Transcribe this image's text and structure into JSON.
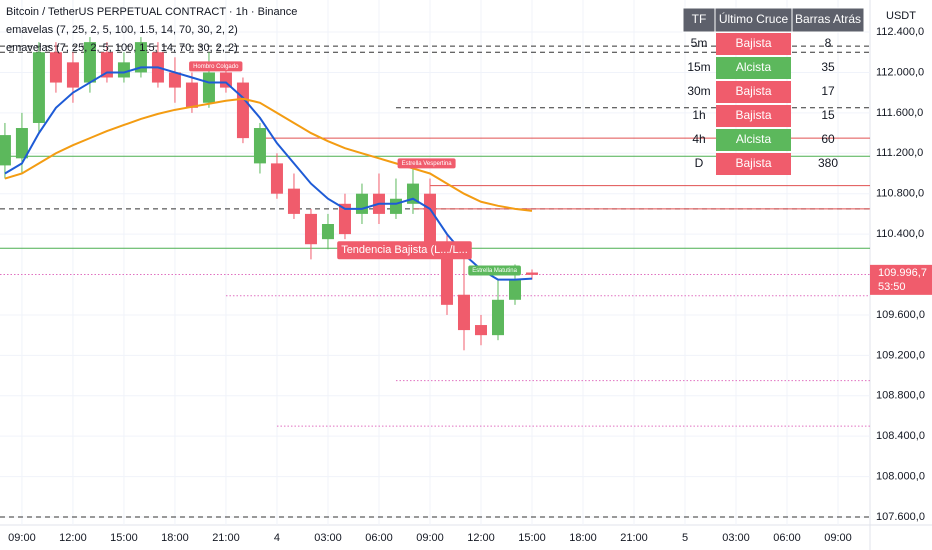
{
  "chart_data": {
    "type": "candlestick",
    "title": "Bitcoin / TetherUS PERPETUAL CONTRACT · 1h · Binance",
    "indicators": [
      "emavelas (7, 25, 2, 5, 100, 1.5, 14, 70, 30, 2, 2)",
      "emavelas (7, 25, 2, 5, 100, 1.5, 14, 70, 30, 2, 2)"
    ],
    "currency": "USDT",
    "x": [
      -1,
      0,
      1,
      2,
      3,
      4,
      5,
      6,
      7,
      8,
      9,
      10,
      11,
      12,
      13,
      14,
      15,
      16,
      17,
      18,
      19,
      20,
      21,
      22,
      23,
      24,
      25,
      26,
      27,
      28,
      29,
      30
    ],
    "open": [
      111080,
      111150,
      111500,
      112200,
      112100,
      111900,
      112200,
      111950,
      112000,
      112200,
      112000,
      111900,
      111700,
      112000,
      111900,
      111100,
      111100,
      110850,
      110600,
      110350,
      110700,
      110600,
      110800,
      110600,
      110700,
      110800,
      110300,
      109800,
      109500,
      109400,
      109750,
      110020
    ],
    "close": [
      111380,
      111450,
      112200,
      111900,
      111850,
      112300,
      111950,
      112100,
      112300,
      111900,
      111850,
      111650,
      112000,
      111850,
      111350,
      111450,
      110800,
      110600,
      110300,
      110500,
      110400,
      110800,
      110600,
      110750,
      110900,
      110300,
      109700,
      109450,
      109400,
      109750,
      109950,
      109996.7
    ],
    "high": [
      111500,
      111600,
      112300,
      112300,
      112200,
      112350,
      112300,
      112200,
      112350,
      112300,
      112150,
      112000,
      112200,
      112100,
      111950,
      111500,
      111200,
      111000,
      110650,
      110600,
      110800,
      110900,
      111000,
      110950,
      111050,
      110950,
      110400,
      110200,
      109600,
      109950,
      110100,
      110050
    ],
    "low": [
      110950,
      111000,
      111400,
      111800,
      111700,
      111800,
      111900,
      111900,
      111950,
      111850,
      111700,
      111600,
      111650,
      111800,
      111300,
      111000,
      110750,
      110550,
      110150,
      110250,
      110350,
      110500,
      110500,
      110550,
      110600,
      110200,
      109600,
      109250,
      109300,
      109350,
      109700,
      109950
    ],
    "up_color": "#5cb85c",
    "down_color": "#f05c6c",
    "overlays": [
      {
        "color": "#1e5bd6",
        "values": [
          111000,
          111100,
          111400,
          111650,
          111800,
          111900,
          112000,
          112000,
          112050,
          112050,
          112000,
          111950,
          111900,
          111900,
          111750,
          111550,
          111300,
          111100,
          110900,
          110750,
          110650,
          110650,
          110700,
          110700,
          110750,
          110650,
          110400,
          110200,
          110050,
          109950,
          109950,
          109960
        ]
      },
      {
        "color": "#f39c12",
        "values": [
          110950,
          111000,
          111100,
          111200,
          111280,
          111350,
          111420,
          111480,
          111540,
          111590,
          111630,
          111660,
          111690,
          111720,
          111740,
          111700,
          111600,
          111500,
          111400,
          111320,
          111250,
          111200,
          111150,
          111100,
          111050,
          111000,
          110900,
          110800,
          110720,
          110680,
          110650,
          110630
        ]
      }
    ],
    "levels": [
      {
        "value": 112260,
        "color": "#333",
        "style": "dashed",
        "from": -1.29
      },
      {
        "value": 112200,
        "color": "#333",
        "style": "dashed",
        "from": -1.29
      },
      {
        "value": 111650,
        "color": "#333",
        "style": "dashed",
        "from": 22
      },
      {
        "value": 111350,
        "color": "#e05050",
        "style": "solid",
        "from": 14
      },
      {
        "value": 111170,
        "color": "#4caf50",
        "style": "solid",
        "from": -1.29
      },
      {
        "value": 110880,
        "color": "#e05050",
        "style": "solid",
        "from": 24
      },
      {
        "value": 110650,
        "color": "#333",
        "style": "dashed",
        "from": -1.29
      },
      {
        "value": 110650,
        "color": "#e05050",
        "style": "solid",
        "from": 23
      },
      {
        "value": 110260,
        "color": "#4caf50",
        "style": "solid",
        "from": -1.29
      },
      {
        "value": 110000,
        "color": "#e070c0",
        "style": "dotted",
        "from": -1.29
      },
      {
        "value": 109790,
        "color": "#e070c0",
        "style": "dotted",
        "from": 12
      },
      {
        "value": 108950,
        "color": "#e070c0",
        "style": "dotted",
        "from": 22
      },
      {
        "value": 108500,
        "color": "#e070c0",
        "style": "dotted",
        "from": 15
      },
      {
        "value": 107600,
        "color": "#333",
        "style": "dashed",
        "from": -1.29
      }
    ],
    "annotations": [
      {
        "text": "Hombro Colgado",
        "x": 11.4,
        "y": 112060,
        "color": "#f05c6c"
      },
      {
        "text": "Estrella Vespertina",
        "x": 23.8,
        "y": 111100,
        "color": "#f05c6c"
      },
      {
        "text": "Estrella Matutina",
        "x": 27.8,
        "y": 110040,
        "color": "#5cb85c"
      },
      {
        "text": "Tendencia Bajista (L.../L...",
        "x": 22.5,
        "y": 110240,
        "color": "#f05c6c",
        "big": true
      }
    ],
    "xlim": [
      -1.29,
      49.88
    ],
    "xticks": [
      {
        "value": 0,
        "label": "09:00"
      },
      {
        "value": 3,
        "label": "12:00"
      },
      {
        "value": 6,
        "label": "15:00"
      },
      {
        "value": 9,
        "label": "18:00"
      },
      {
        "value": 12,
        "label": "21:00"
      },
      {
        "value": 15,
        "label": "4"
      },
      {
        "value": 18,
        "label": "03:00"
      },
      {
        "value": 21,
        "label": "06:00"
      },
      {
        "value": 24,
        "label": "09:00"
      },
      {
        "value": 27,
        "label": "12:00"
      },
      {
        "value": 30,
        "label": "15:00"
      },
      {
        "value": 33,
        "label": "18:00"
      },
      {
        "value": 36,
        "label": "21:00"
      },
      {
        "value": 39,
        "label": "5"
      },
      {
        "value": 42,
        "label": "03:00"
      },
      {
        "value": 45,
        "label": "06:00"
      },
      {
        "value": 48,
        "label": "09:00"
      }
    ],
    "ylim": [
      107521,
      112717
    ],
    "yticks": [
      {
        "value": 112400,
        "label": "112.400,0"
      },
      {
        "value": 112000,
        "label": "112.000,0"
      },
      {
        "value": 111600,
        "label": "111.600,0"
      },
      {
        "value": 111200,
        "label": "111.200,0"
      },
      {
        "value": 110800,
        "label": "110.800,0"
      },
      {
        "value": 110400,
        "label": "110.400,0"
      },
      {
        "value": 109600,
        "label": "109.600,0"
      },
      {
        "value": 109200,
        "label": "109.200,0"
      },
      {
        "value": 108800,
        "label": "108.800,0"
      },
      {
        "value": 108400,
        "label": "108.400,0"
      },
      {
        "value": 108000,
        "label": "108.000,0"
      },
      {
        "value": 107600,
        "label": "107.600,0"
      }
    ],
    "grid": true,
    "last_price": {
      "value": 109996.7,
      "label": "109.996,7"
    },
    "countdown": "53:50",
    "table": {
      "header": [
        "TF",
        "Último Cruce",
        "Barras Atrás"
      ],
      "rows": [
        [
          "5m",
          "Bajista",
          8
        ],
        [
          "15m",
          "Alcista",
          35
        ],
        [
          "30m",
          "Bajista",
          17
        ],
        [
          "1h",
          "Bajista",
          15
        ],
        [
          "4h",
          "Alcista",
          60
        ],
        [
          "D",
          "Bajista",
          380
        ]
      ]
    }
  }
}
